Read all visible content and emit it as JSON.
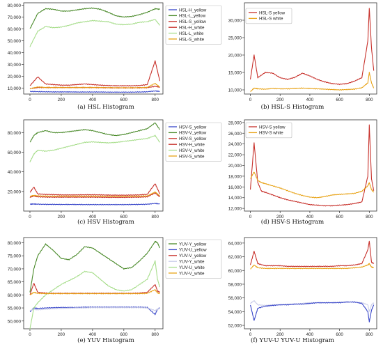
{
  "chart_data": [
    {
      "type": "line",
      "caption": "(a) HSL Histogram",
      "x": [
        0,
        50,
        100,
        150,
        200,
        250,
        300,
        350,
        400,
        450,
        500,
        550,
        600,
        650,
        700,
        750,
        800,
        830
      ],
      "xticks": [
        "0",
        "200",
        "400",
        "600",
        "800"
      ],
      "yticks": [
        "10,000",
        "20,000",
        "30,000",
        "40,000",
        "50,000",
        "60,000",
        "70,000",
        "80,000"
      ],
      "xlim": [
        -40,
        850
      ],
      "ylim": [
        5000,
        82000
      ],
      "legend_position": "right",
      "series": [
        {
          "name": "HSL-H_yellow",
          "color": "#3846c9",
          "values": [
            7200,
            7000,
            6900,
            6800,
            6800,
            6800,
            6700,
            6700,
            6700,
            6700,
            6600,
            6600,
            6600,
            6600,
            6700,
            6900,
            7600,
            7200
          ]
        },
        {
          "name": "HSL-L_yellow",
          "color": "#4a8a2a",
          "values": [
            60000,
            73000,
            77000,
            76500,
            75000,
            75000,
            76000,
            77000,
            77500,
            76500,
            74000,
            71000,
            70000,
            70500,
            72000,
            74000,
            77000,
            76500
          ]
        },
        {
          "name": "HSL-S_yellow",
          "color": "#c7302a",
          "values": [
            12000,
            19500,
            13500,
            13000,
            12500,
            12500,
            13000,
            13500,
            13000,
            12500,
            12200,
            12000,
            12000,
            12000,
            12200,
            13000,
            33000,
            16000
          ]
        },
        {
          "name": "HSL-H_white",
          "color": "#c7302a",
          "values": [
            9500,
            10500,
            10500,
            10500,
            10500,
            10500,
            10500,
            10500,
            10500,
            10400,
            10300,
            10200,
            10200,
            10200,
            10300,
            10400,
            11500,
            10800
          ]
        },
        {
          "name": "HSL-L_white",
          "color": "#a6dd8a",
          "values": [
            45000,
            58000,
            62000,
            61000,
            61500,
            63000,
            65000,
            66000,
            67000,
            66500,
            66000,
            64000,
            63500,
            64000,
            65500,
            66000,
            68000,
            63000
          ]
        },
        {
          "name": "HSL-S_white",
          "color": "#e8a317",
          "values": [
            9500,
            11000,
            10500,
            10500,
            10500,
            10500,
            10500,
            10500,
            10500,
            10500,
            10400,
            10300,
            10300,
            10300,
            10400,
            10600,
            14000,
            10800
          ]
        }
      ]
    },
    {
      "type": "line",
      "caption": "(b) HSL-S Histogram",
      "x": [
        0,
        25,
        50,
        100,
        150,
        200,
        250,
        300,
        350,
        400,
        450,
        500,
        550,
        600,
        650,
        700,
        750,
        790,
        800,
        815,
        830
      ],
      "xticks": [
        "0",
        "200",
        "400",
        "600",
        "800"
      ],
      "yticks": [
        "10,000",
        "15,000",
        "20,000",
        "25,000",
        "30,000"
      ],
      "xlim": [
        -40,
        850
      ],
      "ylim": [
        8800,
        35000
      ],
      "legend_position": "top-left",
      "series": [
        {
          "name": "HSL-S yellow",
          "color": "#c7302a",
          "values": [
            13000,
            20000,
            13500,
            15000,
            14800,
            13500,
            13000,
            13600,
            14800,
            14000,
            13000,
            12300,
            11800,
            11600,
            11800,
            12500,
            13500,
            24000,
            33500,
            22000,
            15500
          ]
        },
        {
          "name": "HSL-S white",
          "color": "#e8a317",
          "values": [
            9500,
            10500,
            10300,
            10200,
            10400,
            10300,
            10300,
            10400,
            10500,
            10400,
            10300,
            10200,
            10100,
            10000,
            10100,
            10200,
            10600,
            12000,
            15000,
            12000,
            10500
          ]
        }
      ]
    },
    {
      "type": "line",
      "caption": "(c) HSV Histogram",
      "x": [
        0,
        25,
        50,
        100,
        150,
        200,
        250,
        300,
        350,
        400,
        450,
        500,
        550,
        600,
        650,
        700,
        750,
        800,
        830
      ],
      "xticks": [
        "0",
        "200",
        "400",
        "600",
        "800"
      ],
      "yticks": [
        "20,000",
        "40,000",
        "60,000",
        "80,000"
      ],
      "xlim": [
        -40,
        850
      ],
      "ylim": [
        0,
        93000
      ],
      "legend_position": "right",
      "series": [
        {
          "name": "HSV-S_yellow",
          "color": "#3846c9",
          "values": [
            7000,
            7200,
            7000,
            6800,
            6800,
            6700,
            6700,
            6700,
            6600,
            6600,
            6600,
            6600,
            6600,
            6600,
            6700,
            6800,
            7000,
            7800,
            7200
          ]
        },
        {
          "name": "HSV-V_yellow",
          "color": "#4a8a2a",
          "values": [
            70000,
            77000,
            80000,
            82000,
            80000,
            80000,
            81000,
            82000,
            83000,
            82000,
            80000,
            78000,
            77000,
            78000,
            80000,
            82000,
            84000,
            90000,
            83000
          ]
        },
        {
          "name": "HSV-S_yellow",
          "color": "#c7302a",
          "values": [
            19000,
            24500,
            17500,
            17000,
            16800,
            16500,
            16500,
            16500,
            16600,
            16600,
            16500,
            16300,
            16200,
            16200,
            16300,
            16500,
            17000,
            28000,
            17500
          ]
        },
        {
          "name": "HSV-H_white",
          "color": "#c7302a",
          "values": [
            14000,
            15500,
            14500,
            14300,
            14200,
            14200,
            14200,
            14200,
            14200,
            14200,
            14100,
            14000,
            14000,
            14000,
            14100,
            14200,
            14500,
            18500,
            14500
          ]
        },
        {
          "name": "HSV-V_white",
          "color": "#a6dd8a",
          "values": [
            50000,
            58000,
            62000,
            61000,
            62000,
            64000,
            66000,
            68000,
            70000,
            70500,
            70000,
            69500,
            70000,
            71000,
            72000,
            73000,
            74000,
            77000,
            70000
          ]
        },
        {
          "name": "HSV-S_white",
          "color": "#e8a317",
          "values": [
            15000,
            16000,
            15500,
            15300,
            15200,
            15200,
            15200,
            15200,
            15200,
            15200,
            15100,
            15000,
            15000,
            15000,
            15100,
            15200,
            15500,
            19500,
            15500
          ]
        }
      ]
    },
    {
      "type": "line",
      "caption": "(d) HSV-S Histogram",
      "x": [
        0,
        25,
        50,
        75,
        100,
        150,
        200,
        250,
        300,
        350,
        400,
        450,
        500,
        550,
        600,
        650,
        700,
        750,
        790,
        800,
        815,
        830
      ],
      "xticks": [
        "0",
        "200",
        "400",
        "600",
        "800"
      ],
      "yticks": [
        "12,000",
        "14,000",
        "16,000",
        "18,000",
        "20,000",
        "22,000",
        "24,000",
        "26,000",
        "28,000"
      ],
      "xlim": [
        -40,
        850
      ],
      "ylim": [
        11500,
        28500
      ],
      "legend_position": "top-left",
      "series": [
        {
          "name": "HSV-S yellow",
          "color": "#c7302a",
          "values": [
            15500,
            24200,
            16800,
            15200,
            15000,
            14500,
            14000,
            13600,
            13300,
            13000,
            12700,
            12600,
            12500,
            12500,
            12600,
            12700,
            12900,
            13200,
            18000,
            27500,
            17500,
            15300
          ]
        },
        {
          "name": "HSV-S white",
          "color": "#e8a317",
          "values": [
            17500,
            18800,
            17200,
            16800,
            16600,
            16200,
            15800,
            15300,
            14800,
            14400,
            14100,
            14000,
            14200,
            14500,
            14600,
            14700,
            14800,
            15200,
            16200,
            16800,
            15500,
            15000
          ]
        }
      ]
    },
    {
      "type": "line",
      "caption": "(e) YUV Histogram",
      "x": [
        0,
        25,
        50,
        100,
        150,
        200,
        250,
        300,
        350,
        400,
        450,
        500,
        550,
        600,
        650,
        700,
        750,
        800,
        815,
        830
      ],
      "xticks": [
        "0",
        "200",
        "400",
        "600",
        "800"
      ],
      "yticks": [
        "50,000",
        "55,000",
        "60,000",
        "65,000",
        "70,000",
        "75,000",
        "80,000"
      ],
      "xlim": [
        -40,
        850
      ],
      "ylim": [
        47000,
        82000
      ],
      "legend_position": "right",
      "series": [
        {
          "name": "YUV-Y_yellow",
          "color": "#4a8a2a",
          "values": [
            61000,
            70000,
            75000,
            79500,
            77000,
            74000,
            73500,
            75500,
            78500,
            78000,
            76000,
            74000,
            72000,
            70000,
            70500,
            73000,
            76000,
            80500,
            80000,
            78000
          ]
        },
        {
          "name": "YUV-U_yellow",
          "color": "#3846c9",
          "values": [
            53500,
            55000,
            54800,
            55000,
            55100,
            55200,
            55200,
            55200,
            55300,
            55300,
            55300,
            55300,
            55300,
            55300,
            55300,
            55300,
            55200,
            52500,
            54500,
            55000
          ]
        },
        {
          "name": "YUV-V_yellow",
          "color": "#c7302a",
          "values": [
            60000,
            64500,
            61000,
            60700,
            60600,
            60600,
            60600,
            60600,
            60600,
            60600,
            60600,
            60600,
            60600,
            60600,
            60600,
            60700,
            61000,
            64000,
            61500,
            61000
          ]
        },
        {
          "name": "YUV-Y_white",
          "color": "#c9cce8",
          "values": [
            54000,
            54500,
            54300,
            54500,
            54700,
            54800,
            54900,
            55000,
            55000,
            55100,
            55100,
            55100,
            55100,
            55100,
            55100,
            55100,
            55000,
            54000,
            54500,
            54800
          ]
        },
        {
          "name": "YUV-U_white",
          "color": "#a6dd8a",
          "values": [
            47000,
            55000,
            57000,
            60000,
            62000,
            64000,
            65500,
            67000,
            69000,
            68500,
            66000,
            63500,
            62000,
            61500,
            62000,
            64000,
            66000,
            73000,
            66000,
            63000
          ]
        },
        {
          "name": "YUV-V_white",
          "color": "#e8a317",
          "values": [
            60000,
            61000,
            60600,
            60500,
            60500,
            60500,
            60500,
            60500,
            60500,
            60500,
            60500,
            60500,
            60500,
            60500,
            60500,
            60500,
            60600,
            62000,
            60800,
            60500
          ]
        }
      ]
    },
    {
      "type": "line",
      "caption": "(f) YUV-U YUV-U Histogram",
      "x": [
        0,
        25,
        50,
        100,
        150,
        200,
        250,
        300,
        350,
        400,
        450,
        500,
        550,
        600,
        650,
        700,
        750,
        790,
        800,
        815,
        830
      ],
      "xticks": [
        "0",
        "200",
        "400",
        "600",
        "800"
      ],
      "yticks": [
        "52,000",
        "54,000",
        "56,000",
        "58,000",
        "60,000",
        "62,000",
        "64,000"
      ],
      "xlim": [
        -40,
        850
      ],
      "ylim": [
        51500,
        64800
      ],
      "legend_position": "none",
      "series": [
        {
          "name": "",
          "color": "#c7302a",
          "values": [
            60800,
            62800,
            61000,
            60700,
            60700,
            60700,
            60600,
            60600,
            60600,
            60600,
            60600,
            60600,
            60600,
            60700,
            60700,
            60800,
            61000,
            63000,
            64300,
            61200,
            61000
          ]
        },
        {
          "name": "",
          "color": "#e8a317",
          "values": [
            60200,
            60800,
            60400,
            60300,
            60300,
            60300,
            60300,
            60300,
            60300,
            60300,
            60300,
            60300,
            60300,
            60300,
            60300,
            60400,
            60500,
            60800,
            61000,
            60500,
            60400
          ]
        },
        {
          "name": "",
          "color": "#c9cce8",
          "values": [
            55200,
            55600,
            55000,
            54900,
            55000,
            55000,
            55100,
            55100,
            55200,
            55300,
            55300,
            55300,
            55300,
            55400,
            55400,
            55400,
            55300,
            55000,
            54000,
            55000,
            55300
          ]
        },
        {
          "name": "",
          "color": "#3846c9",
          "values": [
            55000,
            52700,
            54500,
            54800,
            54900,
            55000,
            55000,
            55100,
            55100,
            55200,
            55300,
            55300,
            55300,
            55300,
            55400,
            55400,
            55200,
            54000,
            52500,
            54200,
            55000
          ]
        }
      ]
    }
  ]
}
